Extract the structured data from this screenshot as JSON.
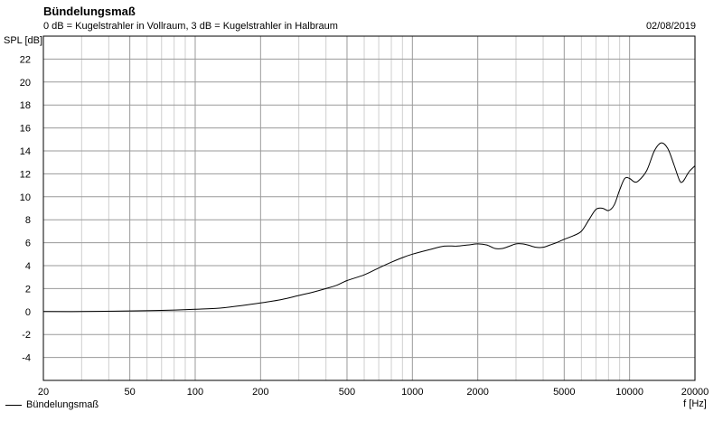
{
  "header": {
    "title": "Bündelungsmaß",
    "subtitle": "0 dB = Kugelstrahler in Vollraum, 3 dB = Kugelstrahler in Halbraum",
    "date": "02/08/2019"
  },
  "chart_data": {
    "type": "line",
    "xscale": "log",
    "xlim": [
      20,
      20000
    ],
    "ylim": [
      -6,
      24
    ],
    "xlabel": "f [Hz]",
    "ylabel": "SPL [dB]",
    "xticks": [
      20,
      50,
      100,
      200,
      500,
      1000,
      2000,
      5000,
      10000,
      20000
    ],
    "xtick_labels": [
      "20",
      "50",
      "100",
      "200",
      "500",
      "1000",
      "2000",
      "5000",
      "10000",
      "20000"
    ],
    "yticks": [
      -4,
      -2,
      0,
      2,
      4,
      6,
      8,
      10,
      12,
      14,
      16,
      18,
      20,
      22
    ],
    "ytick_labels": [
      "-4",
      "-2",
      "0",
      "2",
      "4",
      "6",
      "8",
      "10",
      "12",
      "14",
      "16",
      "18",
      "20",
      "22"
    ],
    "grid": true,
    "legend_position": "bottom-left",
    "series": [
      {
        "name": "Bündelungsmaß",
        "color": "#000000",
        "x": [
          20,
          30,
          50,
          70,
          100,
          130,
          160,
          200,
          250,
          300,
          350,
          400,
          450,
          500,
          600,
          700,
          800,
          900,
          1000,
          1200,
          1400,
          1600,
          1800,
          2000,
          2200,
          2400,
          2600,
          2800,
          3000,
          3200,
          3400,
          3700,
          4000,
          4300,
          4600,
          5000,
          5500,
          6000,
          6500,
          7000,
          7500,
          8000,
          8500,
          9000,
          9500,
          10000,
          10500,
          11000,
          12000,
          13000,
          14000,
          15000,
          16000,
          17000,
          17500,
          18000,
          18500,
          19000,
          20000
        ],
        "y": [
          0.0,
          0.0,
          0.05,
          0.1,
          0.2,
          0.3,
          0.5,
          0.75,
          1.05,
          1.4,
          1.7,
          2.0,
          2.3,
          2.7,
          3.2,
          3.8,
          4.3,
          4.7,
          5.0,
          5.4,
          5.7,
          5.7,
          5.8,
          5.9,
          5.8,
          5.5,
          5.5,
          5.7,
          5.9,
          5.9,
          5.8,
          5.6,
          5.6,
          5.8,
          6.0,
          6.3,
          6.6,
          7.0,
          8.0,
          8.9,
          9.0,
          8.8,
          9.3,
          10.6,
          11.6,
          11.6,
          11.3,
          11.4,
          12.3,
          14.0,
          14.7,
          14.2,
          12.8,
          11.4,
          11.3,
          11.6,
          12.0,
          12.3,
          12.7
        ]
      }
    ]
  }
}
